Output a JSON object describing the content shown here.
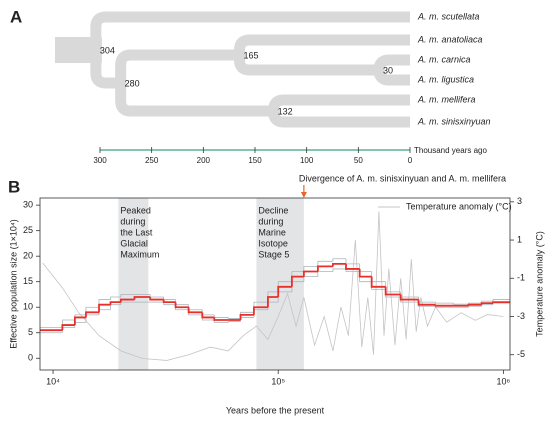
{
  "panel_a": {
    "label": "A",
    "leaves": [
      "A. m. scutellata",
      "A. m. anatoliaca",
      "A. m. carnica",
      "A. m. ligustica",
      "A. m. mellifera",
      "A. m. sinisxinyuan"
    ],
    "nodes": [
      304,
      280,
      165,
      30,
      132
    ],
    "xlim": [
      300,
      0
    ],
    "xticks": [
      300,
      250,
      200,
      150,
      100,
      50,
      0
    ],
    "xlabel": "Thousand years ago",
    "branch_color": "#d9d9d9",
    "axis_color": "#3aa57c"
  },
  "chart_data": {
    "type": "line",
    "label": "B",
    "xlabel": "Years before the present",
    "ylabel": "Effective population size (1×10⁴)",
    "y2label": "Temperature anomaly (°C)",
    "log_x": true,
    "xlim": [
      8750,
      1070000
    ],
    "xticks": [
      {
        "value": 10000,
        "label": "10⁴"
      },
      {
        "value": 100000,
        "label": "10⁵"
      },
      {
        "value": 1000000,
        "label": "10⁶"
      }
    ],
    "ylim": [
      -2.3,
      31.4
    ],
    "yticks": [
      0,
      5,
      10,
      15,
      20,
      25,
      30
    ],
    "y2lim": [
      -5.8,
      3.2
    ],
    "y2ticks": [
      -5,
      -3,
      -1,
      1,
      3
    ],
    "legend": "upper right",
    "shaded": [
      {
        "lines": [
          "Peaked",
          "during",
          "the Last",
          "Glacial",
          "Maximum"
        ],
        "x": [
          19500,
          26500
        ]
      },
      {
        "lines": [
          "Decline",
          "during",
          "Marine",
          "Isotope",
          "Stage 5"
        ],
        "x": [
          80000,
          130000
        ]
      }
    ],
    "annotation": {
      "text": "Divergence of A. m. sinisxinyuan and A. m. mellifera",
      "x": 130000,
      "color": "#e8642a"
    },
    "x": [
      8750,
      11000,
      12500,
      14000,
      16000,
      18000,
      20000,
      23000,
      27000,
      31000,
      35000,
      40000,
      46000,
      52000,
      60000,
      68000,
      78000,
      90000,
      100000,
      115000,
      130000,
      150000,
      175000,
      200000,
      230000,
      260000,
      300000,
      350000,
      420000,
      500000,
      600000,
      700000,
      800000,
      900000
    ],
    "series": [
      {
        "color": "#aab4bd",
        "step": true,
        "values": [
          6,
          7.5,
          8.5,
          10,
          11.5,
          12,
          12.5,
          12.5,
          12,
          11.5,
          10.5,
          9.5,
          8.5,
          8,
          7.8,
          9,
          11,
          13,
          15,
          17,
          18,
          19,
          19.5,
          18.5,
          17,
          15,
          13,
          12,
          11,
          10.8,
          10.6,
          10.8,
          11.2,
          11.5
        ]
      },
      {
        "color": "#aab4bd",
        "step": true,
        "values": [
          5,
          6,
          7,
          8.5,
          9.5,
          10.5,
          11,
          11,
          11,
          10.5,
          9.5,
          8.5,
          7.5,
          7,
          7.2,
          8,
          9.5,
          11,
          13,
          15,
          16,
          17,
          17.5,
          17,
          15,
          13.5,
          12,
          11,
          10.2,
          10,
          10,
          10.2,
          10.5,
          10.8
        ]
      },
      {
        "color": "#e8302a",
        "step": true,
        "values": [
          5.5,
          6.5,
          8,
          9,
          10.5,
          11,
          11.5,
          12,
          11.5,
          11,
          10,
          9,
          8,
          7.5,
          7.5,
          8.5,
          10,
          12,
          14,
          16,
          17,
          18,
          18.5,
          17.5,
          16,
          14,
          12.5,
          11.5,
          10.5,
          10.3,
          10.3,
          10.5,
          10.8,
          11
        ]
      },
      {
        "name": "Temperature anomaly (°C)",
        "color": "#c4c4c4",
        "axis": "y2",
        "x": [
          9000,
          11000,
          13000,
          16000,
          20000,
          25000,
          32000,
          40000,
          50000,
          60000,
          70000,
          80000,
          90000,
          100000,
          110000,
          120000,
          130000,
          145000,
          160000,
          175000,
          190000,
          205000,
          220000,
          235000,
          250000,
          265000,
          280000,
          295000,
          310000,
          330000,
          350000,
          370000,
          390000,
          410000,
          430000,
          460000,
          500000,
          560000,
          650000,
          750000,
          850000,
          1000000
        ],
        "values": [
          -0.2,
          -1.5,
          -2.8,
          -4,
          -4.8,
          -5.2,
          -5.3,
          -5,
          -4.6,
          -4.8,
          -4,
          -3.5,
          -4.2,
          -3,
          -1.8,
          -3.5,
          -2,
          -4.5,
          -3,
          -4.8,
          -2.5,
          -4,
          1,
          -4.6,
          -2,
          -5,
          2.5,
          -4,
          -0.5,
          -4.5,
          -1,
          -4.2,
          0,
          -3.8,
          -2,
          -3.5,
          -2.5,
          -3.3,
          -2.8,
          -3.2,
          -2.9,
          -3
        ]
      }
    ]
  }
}
